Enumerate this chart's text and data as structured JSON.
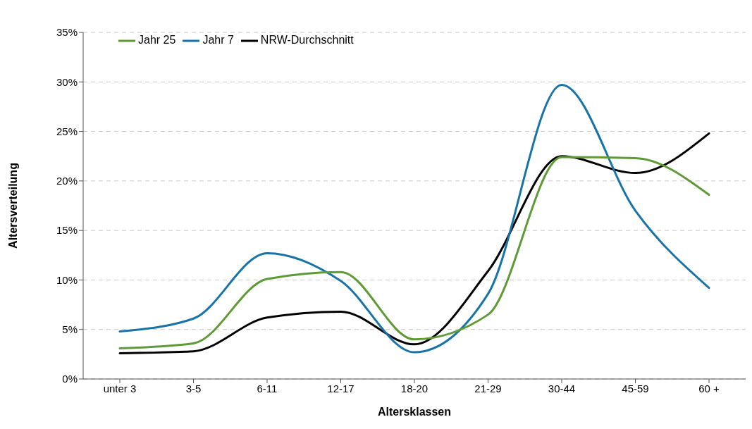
{
  "chart_data": {
    "type": "line",
    "xlabel": "Altersklassen",
    "ylabel": "Altersverteilung",
    "categories": [
      "unter 3",
      "3-5",
      "6-11",
      "12-17",
      "18-20",
      "21-29",
      "30-44",
      "45-59",
      "60 +"
    ],
    "series": [
      {
        "name": "NRW-Durchschnitt",
        "color": "#000000",
        "values": [
          2.6,
          2.8,
          6.2,
          6.8,
          3.5,
          10.9,
          22.5,
          20.8,
          24.8
        ]
      },
      {
        "name": "Jahr 7",
        "color": "#1874a8",
        "values": [
          4.8,
          6.1,
          12.7,
          9.9,
          2.7,
          8.6,
          29.7,
          17.0,
          9.2
        ]
      },
      {
        "name": "Jahr 25",
        "color": "#5e9a35",
        "values": [
          3.1,
          3.6,
          10.1,
          10.8,
          4.0,
          6.5,
          22.4,
          22.3,
          18.6
        ]
      }
    ],
    "ylim": [
      0,
      35
    ],
    "yticks": [
      {
        "value": 0,
        "label": "0%"
      },
      {
        "value": 5,
        "label": "5%"
      },
      {
        "value": 10,
        "label": "10%"
      },
      {
        "value": 15,
        "label": "15%"
      },
      {
        "value": 20,
        "label": "20%"
      },
      {
        "value": 25,
        "label": "25%"
      },
      {
        "value": 30,
        "label": "30%"
      },
      {
        "value": 35,
        "label": "35%"
      }
    ],
    "grid": "y",
    "legend": "top left",
    "marker": "none",
    "line_style": "solid"
  }
}
